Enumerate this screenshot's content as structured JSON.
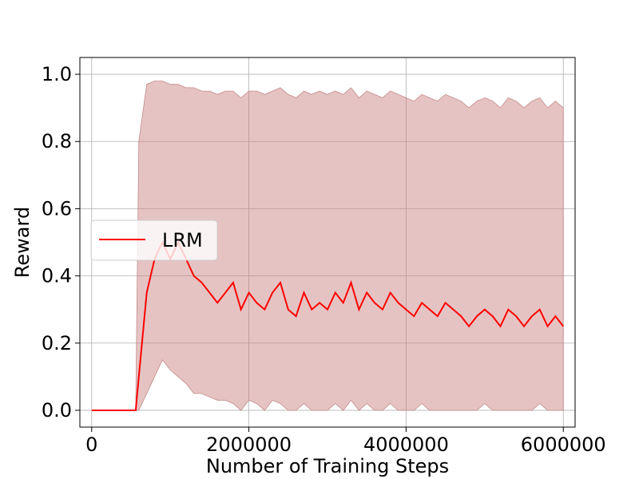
{
  "chart_data": {
    "type": "line",
    "title": "",
    "xlabel": "Number of Training Steps",
    "ylabel": "Reward",
    "xlim": [
      -150000,
      6150000
    ],
    "ylim": [
      -0.05,
      1.05
    ],
    "x_ticks": [
      0,
      2000000,
      4000000,
      6000000
    ],
    "x_tick_labels": [
      "0",
      "2000000",
      "4000000",
      "6000000"
    ],
    "y_ticks": [
      0.0,
      0.2,
      0.4,
      0.6,
      0.8,
      1.0
    ],
    "y_tick_labels": [
      "0.0",
      "0.2",
      "0.4",
      "0.6",
      "0.8",
      "1.0"
    ],
    "grid": true,
    "legend": {
      "position": "center-left",
      "entries": [
        "LRM"
      ]
    },
    "colors": {
      "mean_line": "#ff0000",
      "band_fill": "#c87a7a",
      "band_edge": "#c48a8a",
      "grid": "#b0b0b0"
    },
    "series": [
      {
        "name": "LRM",
        "x": [
          0,
          300000,
          500000,
          560000,
          600000,
          700000,
          800000,
          900000,
          1000000,
          1100000,
          1200000,
          1300000,
          1400000,
          1500000,
          1600000,
          1700000,
          1800000,
          1900000,
          2000000,
          2100000,
          2200000,
          2300000,
          2400000,
          2500000,
          2600000,
          2700000,
          2800000,
          2900000,
          3000000,
          3100000,
          3200000,
          3300000,
          3400000,
          3500000,
          3600000,
          3700000,
          3800000,
          3900000,
          4000000,
          4100000,
          4200000,
          4300000,
          4400000,
          4500000,
          4600000,
          4700000,
          4800000,
          4900000,
          5000000,
          5100000,
          5200000,
          5300000,
          5400000,
          5500000,
          5600000,
          5700000,
          5800000,
          5900000,
          6000000
        ],
        "values": [
          0.0,
          0.0,
          0.0,
          0.0,
          0.1,
          0.35,
          0.45,
          0.5,
          0.45,
          0.5,
          0.45,
          0.4,
          0.38,
          0.35,
          0.32,
          0.35,
          0.38,
          0.3,
          0.35,
          0.32,
          0.3,
          0.35,
          0.38,
          0.3,
          0.28,
          0.35,
          0.3,
          0.32,
          0.3,
          0.35,
          0.32,
          0.38,
          0.3,
          0.35,
          0.32,
          0.3,
          0.35,
          0.32,
          0.3,
          0.28,
          0.32,
          0.3,
          0.28,
          0.32,
          0.3,
          0.28,
          0.25,
          0.28,
          0.3,
          0.28,
          0.25,
          0.3,
          0.28,
          0.25,
          0.28,
          0.3,
          0.25,
          0.28,
          0.25
        ],
        "lower": [
          0.0,
          0.0,
          0.0,
          0.0,
          0.0,
          0.05,
          0.1,
          0.15,
          0.12,
          0.1,
          0.08,
          0.05,
          0.05,
          0.04,
          0.03,
          0.03,
          0.02,
          0.0,
          0.03,
          0.02,
          0.0,
          0.03,
          0.02,
          0.0,
          0.0,
          0.02,
          0.0,
          0.0,
          0.0,
          0.02,
          0.0,
          0.03,
          0.0,
          0.02,
          0.0,
          0.0,
          0.02,
          0.0,
          0.0,
          0.0,
          0.02,
          0.0,
          0.0,
          0.0,
          0.0,
          0.0,
          0.0,
          0.0,
          0.02,
          0.0,
          0.0,
          0.0,
          0.0,
          0.0,
          0.0,
          0.02,
          0.0,
          0.0,
          0.0
        ],
        "upper": [
          0.0,
          0.0,
          0.0,
          0.0,
          0.8,
          0.97,
          0.98,
          0.98,
          0.97,
          0.97,
          0.96,
          0.96,
          0.95,
          0.95,
          0.94,
          0.95,
          0.95,
          0.93,
          0.95,
          0.95,
          0.94,
          0.95,
          0.96,
          0.94,
          0.93,
          0.95,
          0.94,
          0.95,
          0.94,
          0.95,
          0.94,
          0.96,
          0.93,
          0.95,
          0.94,
          0.93,
          0.95,
          0.94,
          0.93,
          0.92,
          0.94,
          0.93,
          0.92,
          0.94,
          0.93,
          0.92,
          0.9,
          0.92,
          0.93,
          0.92,
          0.9,
          0.93,
          0.92,
          0.9,
          0.92,
          0.93,
          0.9,
          0.92,
          0.9
        ]
      }
    ]
  }
}
